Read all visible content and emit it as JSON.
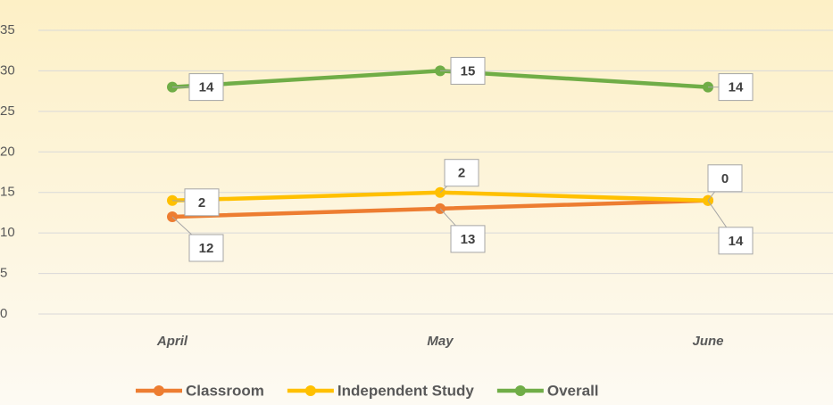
{
  "chart_data": {
    "type": "line",
    "stacked": true,
    "categories": [
      "April",
      "May",
      "June"
    ],
    "series": [
      {
        "name": "Classroom",
        "color": "#ed7d31",
        "values": [
          12,
          13,
          14
        ]
      },
      {
        "name": "Independent Study",
        "color": "#ffc000",
        "values": [
          2,
          2,
          0
        ]
      },
      {
        "name": "Overall",
        "color": "#70ad47",
        "values": [
          14,
          15,
          14
        ]
      }
    ],
    "ylim": [
      0,
      35
    ],
    "yticks": [
      0,
      5,
      10,
      15,
      20,
      25,
      30,
      35
    ],
    "grid": true,
    "legend": "bottom"
  }
}
